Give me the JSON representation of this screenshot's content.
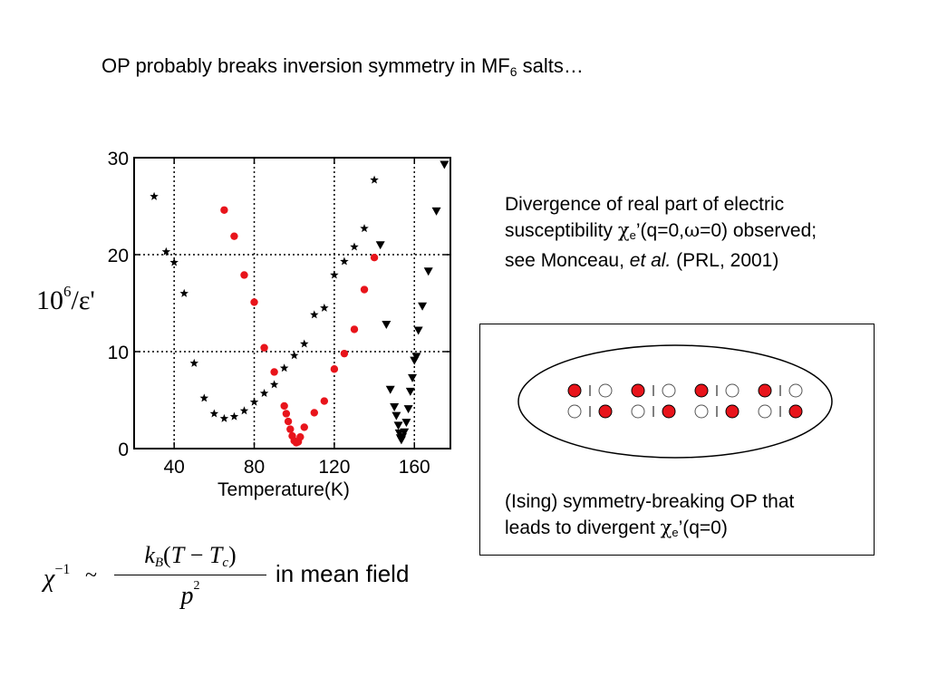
{
  "title": {
    "main": "OP probably breaks inversion symmetry in MF",
    "sub": "6",
    "tail": " salts…"
  },
  "ylabel": {
    "base": "10",
    "exp": "6",
    "rest": "/ε'"
  },
  "description": {
    "line1": "Divergence of real part of electric",
    "line2_pre": "susceptibility ",
    "chi": "χ",
    "sub_e": "e",
    "line2_mid": "’(q=0,",
    "omega": "ω",
    "line2_post": "=0) observed;",
    "line3_pre": "see Monceau, ",
    "line3_italic": "et al.",
    "line3_post": " (PRL, 2001)"
  },
  "caption": {
    "line1": "(Ising) symmetry-breaking OP that",
    "line2_pre": "leads to divergent ",
    "chi": "χ",
    "sub_e": "e",
    "line2_post": "’(q=0)"
  },
  "formula": {
    "chi": "χ",
    "exp": "−1",
    "tilde": "~",
    "k": "k",
    "k_sub": "B",
    "paren_open": "(",
    "T": "T",
    "minus": " − ",
    "Tc": "T",
    "Tc_sub": "c",
    "paren_close": ")",
    "p": "p",
    "p_exp": "2",
    "tail": "in mean field"
  },
  "colors": {
    "red": "#e8141b",
    "black": "#000000",
    "grid": "#000000"
  },
  "chart_data": {
    "type": "scatter",
    "xlabel": "Temperature(K)",
    "ylabel": "10^6/ε'",
    "xlim": [
      20,
      178
    ],
    "ylim": [
      0,
      30
    ],
    "xticks": [
      40,
      80,
      120,
      160
    ],
    "yticks": [
      0,
      10,
      20,
      30
    ],
    "grid": true,
    "series": [
      {
        "marker": "star",
        "color": "#000000",
        "points": [
          [
            30,
            26
          ],
          [
            36,
            20.3
          ],
          [
            40,
            19.2
          ],
          [
            45,
            16
          ],
          [
            50,
            8.8
          ],
          [
            55,
            5.2
          ],
          [
            60,
            3.6
          ],
          [
            65,
            3.1
          ],
          [
            70,
            3.3
          ],
          [
            75,
            3.9
          ],
          [
            80,
            4.8
          ],
          [
            85,
            5.7
          ],
          [
            90,
            6.6
          ],
          [
            95,
            8.3
          ],
          [
            100,
            9.6
          ],
          [
            105,
            10.8
          ],
          [
            110,
            13.8
          ],
          [
            115,
            14.5
          ],
          [
            120,
            17.9
          ],
          [
            125,
            19.3
          ],
          [
            130,
            20.8
          ],
          [
            135,
            22.7
          ],
          [
            140,
            27.7
          ]
        ]
      },
      {
        "marker": "circle",
        "color": "#e8141b",
        "points": [
          [
            65,
            24.6
          ],
          [
            70,
            21.9
          ],
          [
            75,
            17.9
          ],
          [
            80,
            15.1
          ],
          [
            85,
            10.4
          ],
          [
            90,
            7.9
          ],
          [
            95,
            4.4
          ],
          [
            96,
            3.6
          ],
          [
            97,
            2.8
          ],
          [
            98,
            2
          ],
          [
            99,
            1.3
          ],
          [
            100,
            0.8
          ],
          [
            101,
            0.6
          ],
          [
            102,
            0.7
          ],
          [
            103,
            1.2
          ],
          [
            105,
            2.2
          ],
          [
            110,
            3.7
          ],
          [
            115,
            4.9
          ],
          [
            120,
            8.2
          ],
          [
            125,
            9.8
          ],
          [
            130,
            12.3
          ],
          [
            135,
            16.4
          ],
          [
            140,
            19.7
          ]
        ]
      },
      {
        "marker": "triangle-down",
        "color": "#000000",
        "points": [
          [
            143,
            21
          ],
          [
            146,
            12.8
          ],
          [
            148,
            6.1
          ],
          [
            150,
            4.3
          ],
          [
            151,
            3.4
          ],
          [
            152,
            2.4
          ],
          [
            152.5,
            1.6
          ],
          [
            153,
            1.1
          ],
          [
            153.5,
            0.9
          ],
          [
            154,
            1.2
          ],
          [
            155,
            1.7
          ],
          [
            156,
            2.7
          ],
          [
            157,
            4.1
          ],
          [
            158,
            5.9
          ],
          [
            159,
            7.3
          ],
          [
            160,
            9.1
          ],
          [
            161,
            9.5
          ],
          [
            162,
            12.2
          ],
          [
            164,
            14.7
          ],
          [
            167,
            18.3
          ],
          [
            171,
            24.5
          ],
          [
            175,
            29.3
          ]
        ]
      }
    ]
  },
  "panel": {
    "row1": [
      "filled",
      "open",
      "filled",
      "open",
      "filled",
      "open",
      "filled",
      "open"
    ],
    "row2": [
      "open",
      "filled",
      "open",
      "filled",
      "open",
      "filled",
      "open",
      "filled"
    ]
  }
}
